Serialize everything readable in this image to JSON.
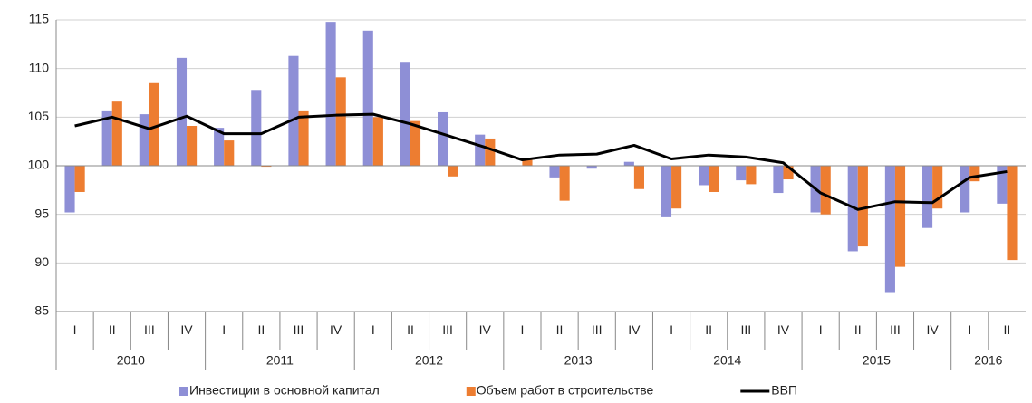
{
  "chart_data": {
    "type": "bar",
    "groups": [
      {
        "name": "2010",
        "categories": [
          "I",
          "II",
          "III",
          "IV"
        ]
      },
      {
        "name": "2011",
        "categories": [
          "I",
          "II",
          "III",
          "IV"
        ]
      },
      {
        "name": "2012",
        "categories": [
          "I",
          "II",
          "III",
          "IV"
        ]
      },
      {
        "name": "2013",
        "categories": [
          "I",
          "II",
          "III",
          "IV"
        ]
      },
      {
        "name": "2014",
        "categories": [
          "I",
          "II",
          "III",
          "IV"
        ]
      },
      {
        "name": "2015",
        "categories": [
          "I",
          "II",
          "III",
          "IV"
        ]
      },
      {
        "name": "2016",
        "categories": [
          "I",
          "II"
        ]
      }
    ],
    "baseline": 100,
    "series": [
      {
        "name": "Инвестиции в основной капитал",
        "color": "#8e8fd6",
        "kind": "bar",
        "values": [
          95.2,
          105.6,
          105.3,
          111.1,
          103.9,
          107.8,
          111.3,
          114.8,
          113.9,
          110.6,
          105.5,
          103.2,
          100.0,
          98.8,
          99.7,
          100.4,
          94.7,
          98.0,
          98.5,
          97.2,
          95.2,
          91.2,
          87.0,
          93.6,
          95.2,
          96.1
        ]
      },
      {
        "name": "Объем работ в строительстве",
        "color": "#ed7d31",
        "kind": "bar",
        "values": [
          97.3,
          106.6,
          108.5,
          104.1,
          102.6,
          99.9,
          105.6,
          109.1,
          105.0,
          104.6,
          98.9,
          102.8,
          100.6,
          96.4,
          100.0,
          97.6,
          95.6,
          97.3,
          98.1,
          98.6,
          95.0,
          91.7,
          89.6,
          95.6,
          98.4,
          90.3
        ]
      },
      {
        "name": "ВВП",
        "color": "#000000",
        "kind": "line",
        "values": [
          104.1,
          105.0,
          103.8,
          105.1,
          103.3,
          103.3,
          105.0,
          105.2,
          105.3,
          104.3,
          103.1,
          101.9,
          100.6,
          101.1,
          101.2,
          102.1,
          100.7,
          101.1,
          100.9,
          100.3,
          97.2,
          95.5,
          96.3,
          96.2,
          98.8,
          99.4
        ]
      }
    ],
    "ylim": [
      85,
      115
    ],
    "yticks": [
      85,
      90,
      95,
      100,
      105,
      110,
      115
    ],
    "grid": true,
    "legend": "bottom"
  }
}
